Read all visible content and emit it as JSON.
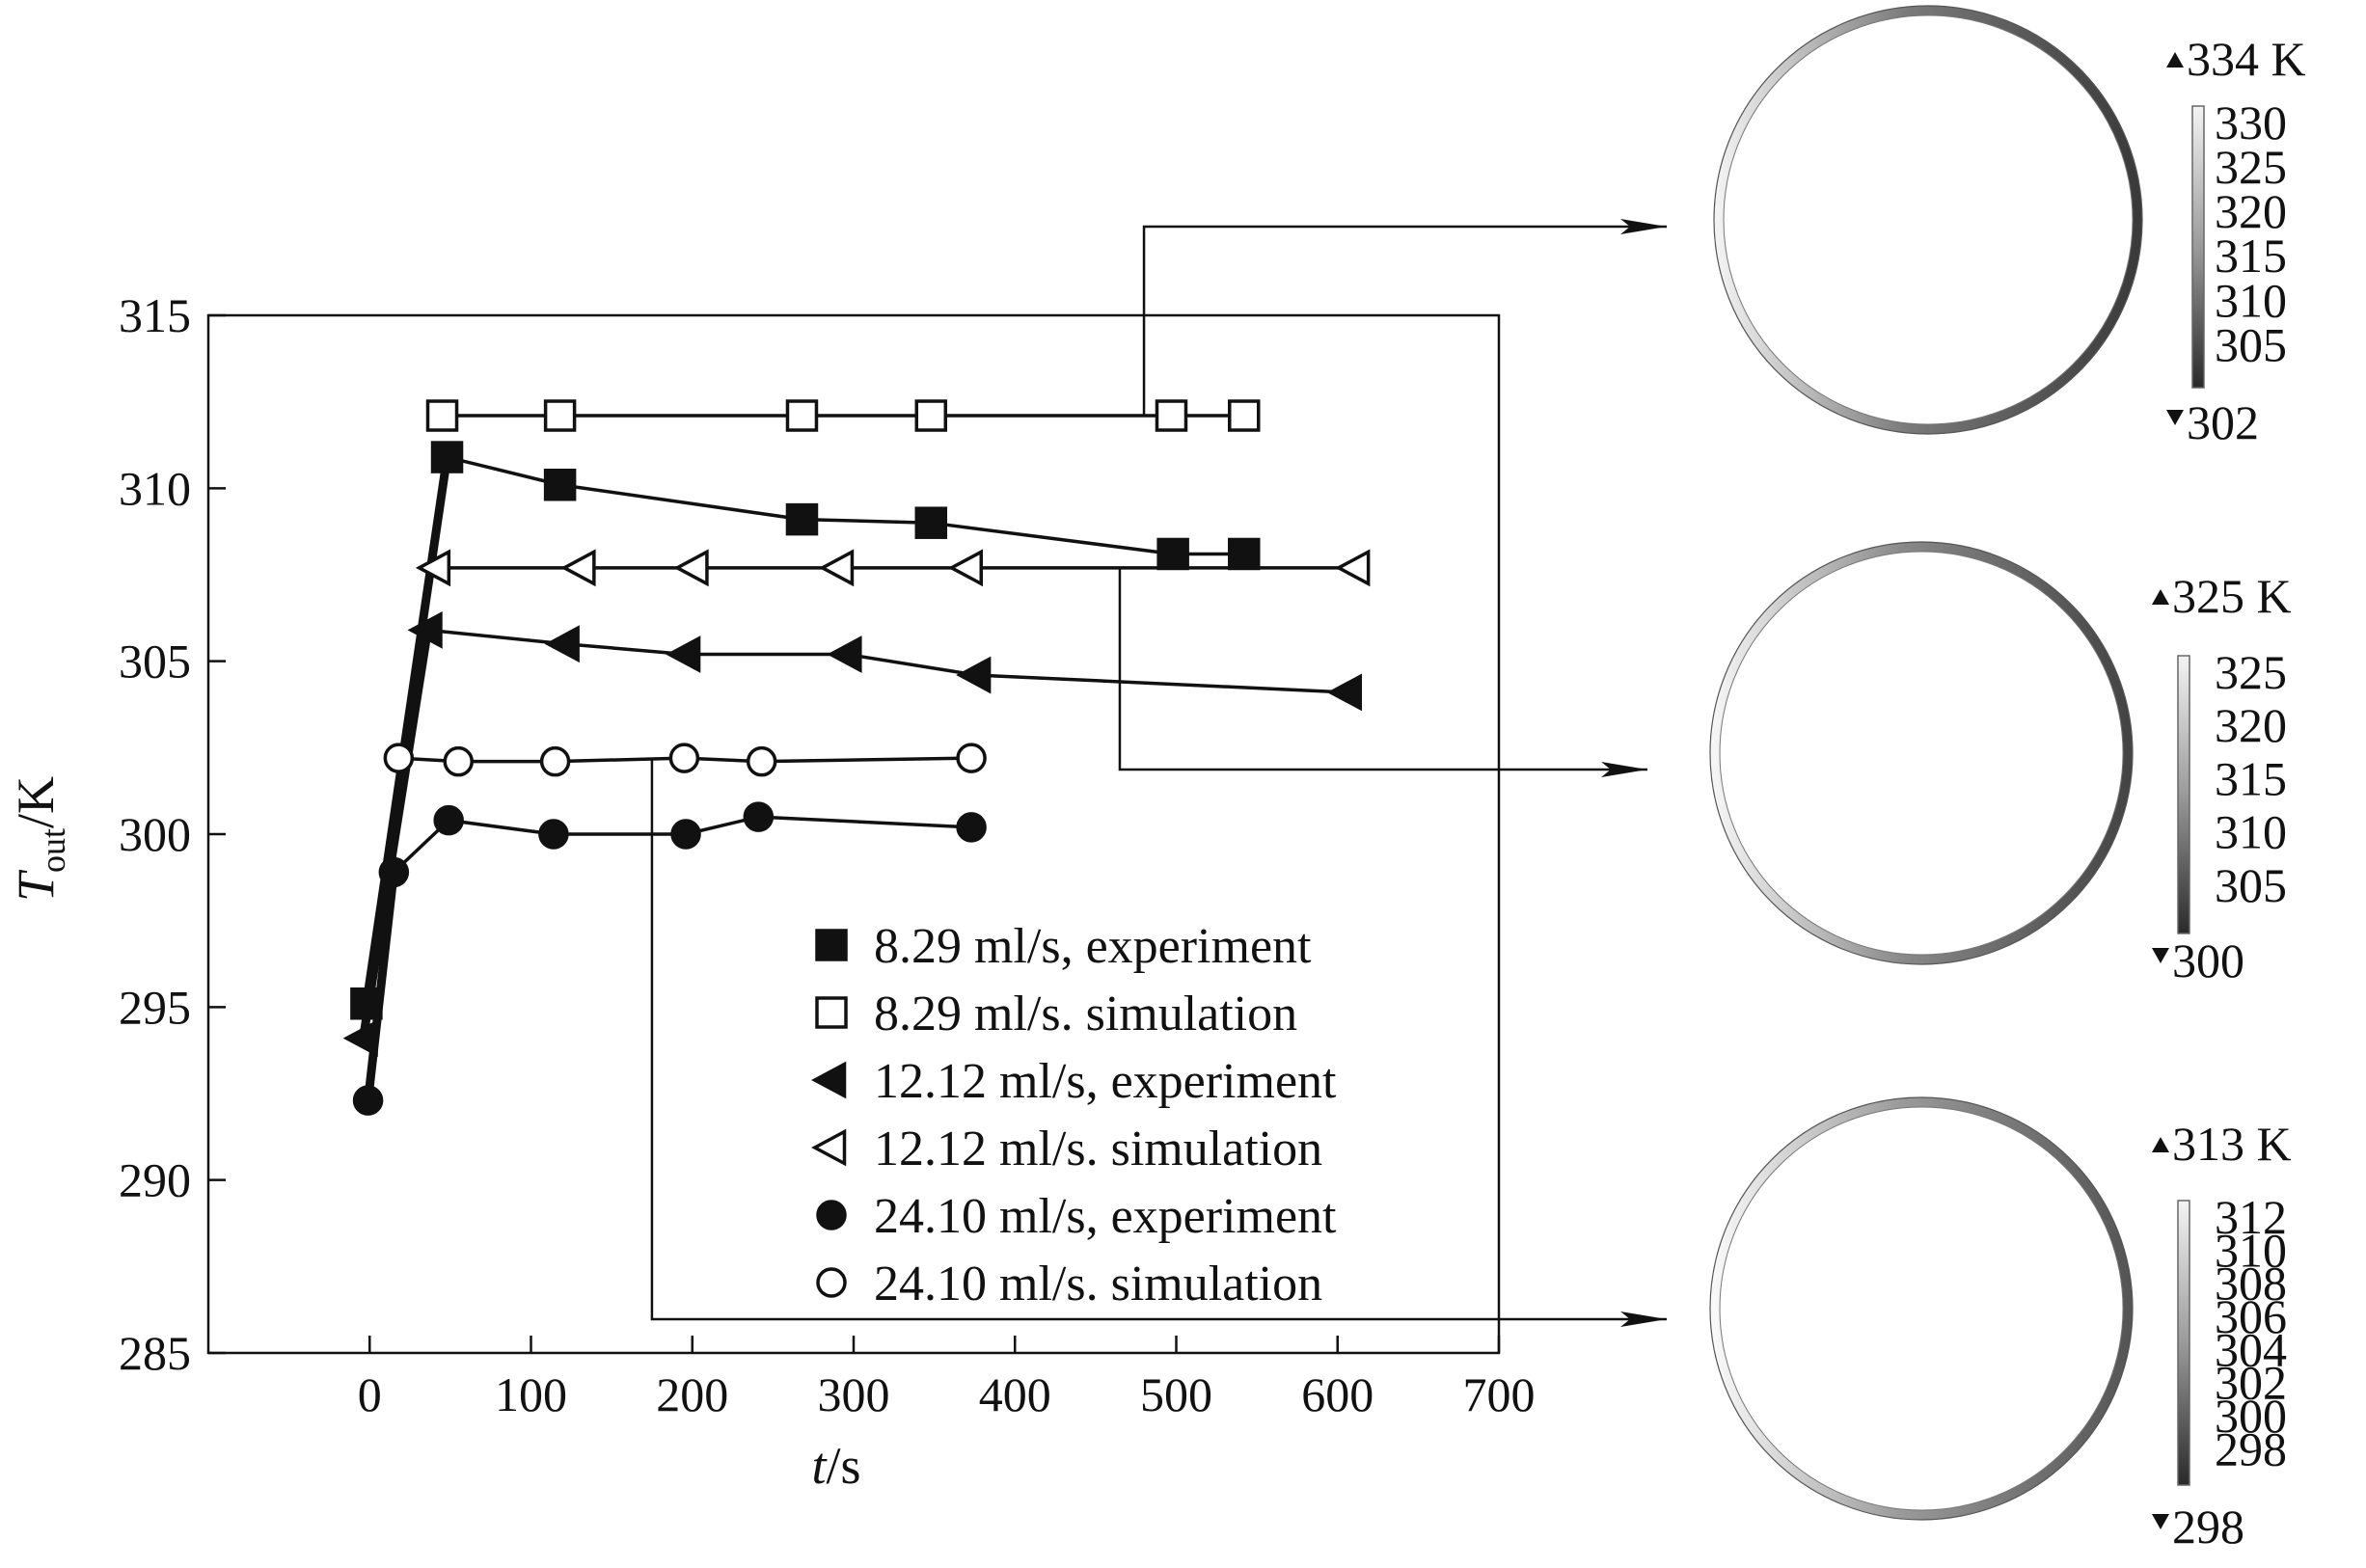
{
  "chart_data": {
    "type": "line",
    "xlabel": "t/s",
    "ylabel": "T_out/K",
    "xlabel_parts": {
      "var": "t",
      "unit": "/s"
    },
    "ylabel_parts": {
      "var": "T",
      "sub": "out",
      "unit": "/K"
    },
    "xlim": [
      -100,
      700
    ],
    "ylim": [
      285,
      315
    ],
    "xticks": [
      0,
      100,
      200,
      300,
      400,
      500,
      600,
      700
    ],
    "yticks": [
      285,
      290,
      295,
      300,
      305,
      310,
      315
    ],
    "grid": false,
    "legend": "bottom-right",
    "series": [
      {
        "name": "8.29 ml/s, experiment",
        "marker": "square",
        "filled": true,
        "x": [
          -2,
          48,
          118,
          268,
          348,
          498,
          542
        ],
        "y": [
          295.1,
          310.9,
          310.1,
          309.1,
          309.0,
          308.1,
          308.1
        ]
      },
      {
        "name": "8.29 ml/s. simulation",
        "marker": "square",
        "filled": false,
        "x": [
          45,
          118,
          268,
          348,
          497,
          542
        ],
        "y": [
          312.1,
          312.1,
          312.1,
          312.1,
          312.1,
          312.1
        ]
      },
      {
        "name": "12.12 ml/s, experiment",
        "marker": "triangle-left",
        "filled": true,
        "x": [
          -4,
          36,
          121,
          196,
          296,
          376,
          606
        ],
        "y": [
          294.1,
          305.9,
          305.5,
          305.2,
          305.2,
          304.6,
          304.1
        ]
      },
      {
        "name": "12.12 ml/s. simulation",
        "marker": "triangle-left",
        "filled": false,
        "x": [
          41,
          131,
          201,
          291,
          371,
          611
        ],
        "y": [
          307.7,
          307.7,
          307.7,
          307.7,
          307.7,
          307.7
        ]
      },
      {
        "name": "24.10 ml/s, experiment",
        "marker": "circle",
        "filled": true,
        "x": [
          -1,
          15,
          49,
          114,
          196,
          241,
          373
        ],
        "y": [
          292.3,
          298.9,
          300.4,
          300.0,
          300.0,
          300.5,
          300.2
        ]
      },
      {
        "name": "24.10 ml/s. simulation",
        "marker": "circle",
        "filled": false,
        "x": [
          18,
          55,
          115,
          195,
          243,
          373
        ],
        "y": [
          302.2,
          302.1,
          302.1,
          302.2,
          302.1,
          302.2
        ]
      }
    ],
    "annotations": [
      {
        "from_series": 1,
        "from_x": 480,
        "to_panel": 0
      },
      {
        "from_series": 3,
        "from_x": 465,
        "to_panel": 1
      },
      {
        "from_series": 5,
        "from_x": 175,
        "to_panel": 2
      }
    ],
    "colorbar_panels": [
      {
        "max_label": "334 K",
        "min_label": "302",
        "ticks": [
          "330",
          "325",
          "320",
          "315",
          "310",
          "305"
        ]
      },
      {
        "max_label": "325 K",
        "min_label": "300",
        "ticks": [
          "325",
          "320",
          "315",
          "310",
          "305"
        ]
      },
      {
        "max_label": "313 K",
        "min_label": "298",
        "ticks": [
          "312",
          "310",
          "308",
          "306",
          "304",
          "302",
          "300",
          "298"
        ]
      }
    ]
  }
}
